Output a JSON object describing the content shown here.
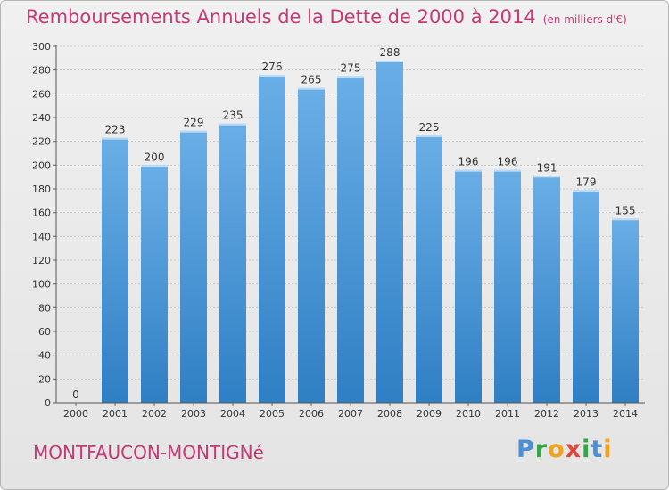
{
  "header": {
    "title": "Remboursements Annuels de la Dette de 2000 à 2014",
    "unit": "(en milliers d'€)"
  },
  "footer": {
    "place": "MONTFAUCON-MONTIGNé",
    "logo": "Proxiti"
  },
  "colors": {
    "title": "#c43a75",
    "bar_top": "#6aaee6",
    "bar_bottom": "#2f7fc4",
    "grid": "#c8c8c8"
  },
  "chart_data": {
    "type": "bar",
    "categories": [
      "2000",
      "2001",
      "2002",
      "2003",
      "2004",
      "2005",
      "2006",
      "2007",
      "2008",
      "2009",
      "2010",
      "2011",
      "2012",
      "2013",
      "2014"
    ],
    "values": [
      0,
      223,
      200,
      229,
      235,
      276,
      265,
      275,
      288,
      225,
      196,
      196,
      191,
      179,
      155
    ],
    "data_labels": [
      "0",
      "223",
      "200",
      "229",
      "235",
      "276",
      "265",
      "275",
      "288",
      "225",
      "196",
      "196",
      "191",
      "179",
      "155"
    ],
    "y_ticks": [
      "0",
      "20",
      "40",
      "60",
      "80",
      "100",
      "120",
      "140",
      "160",
      "180",
      "200",
      "220",
      "240",
      "260",
      "280",
      "300"
    ],
    "ylim": [
      0,
      300
    ],
    "grid": true,
    "legend": "none"
  }
}
